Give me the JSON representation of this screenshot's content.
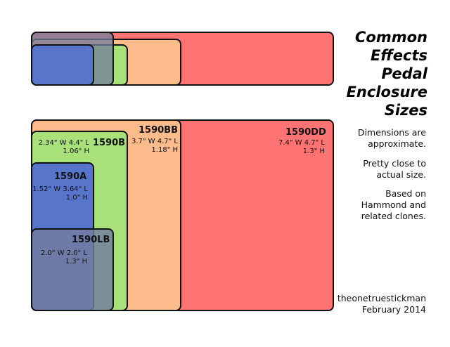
{
  "title_lines": [
    "Common",
    "Effects",
    "Pedal",
    "Enclosure",
    "Sizes"
  ],
  "notes": {
    "dimensions": [
      "Dimensions are",
      "approximate."
    ],
    "actual": [
      "Pretty close to",
      "actual size."
    ],
    "based": [
      "Based on",
      "Hammond and",
      "related clones."
    ]
  },
  "credit": [
    "theonetruestickman",
    "February 2014"
  ],
  "colors": {
    "1590DD": "#ff7373",
    "1590BB": "#fbbb8a",
    "1590B": "#a8e07a",
    "1590A": "#5875cc",
    "1590LB": "#717d9d"
  },
  "enclosures": [
    {
      "name": "1590DD",
      "dim1": "7.4\" W 4.7\" L",
      "dim2": "1.3\" H"
    },
    {
      "name": "1590BB",
      "dim1": "3.7\" W 4.7\" L",
      "dim2": "1.18\" H"
    },
    {
      "name": "1590B",
      "dim1": "2.34\" W 4.4\" L",
      "dim2": "1.06\" H"
    },
    {
      "name": "1590A",
      "dim1": "1.52\" W 3.64\" L",
      "dim2": "1.0\" H"
    },
    {
      "name": "1590LB",
      "dim1": "2.0\" W 2.0\" L",
      "dim2": "1.3\" H"
    }
  ]
}
